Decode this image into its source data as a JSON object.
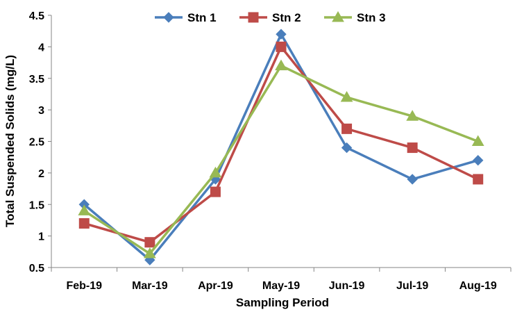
{
  "chart_data": {
    "type": "line",
    "title": "",
    "xlabel": "Sampling Period",
    "ylabel": "Total Suspended Solids (mg/L)",
    "categories": [
      "Feb-19",
      "Mar-19",
      "Apr-19",
      "May-19",
      "Jun-19",
      "Jul-19",
      "Aug-19"
    ],
    "ylim": [
      0.5,
      4.5
    ],
    "yticks": [
      "0.5",
      "1",
      "1.5",
      "2",
      "2.5",
      "3",
      "3.5",
      "4",
      "4.5"
    ],
    "grid": false,
    "legend_position": "top",
    "series": [
      {
        "name": "Stn 1",
        "color": "#4a7ebb",
        "marker": "diamond",
        "values": [
          1.5,
          0.62,
          1.9,
          4.2,
          2.4,
          1.9,
          2.2
        ]
      },
      {
        "name": "Stn 2",
        "color": "#be4b48",
        "marker": "square",
        "values": [
          1.2,
          0.9,
          1.7,
          4.0,
          2.7,
          2.4,
          1.9
        ]
      },
      {
        "name": "Stn 3",
        "color": "#98b954",
        "marker": "triangle",
        "values": [
          1.4,
          0.72,
          2.0,
          3.7,
          3.2,
          2.9,
          2.5
        ]
      }
    ]
  }
}
